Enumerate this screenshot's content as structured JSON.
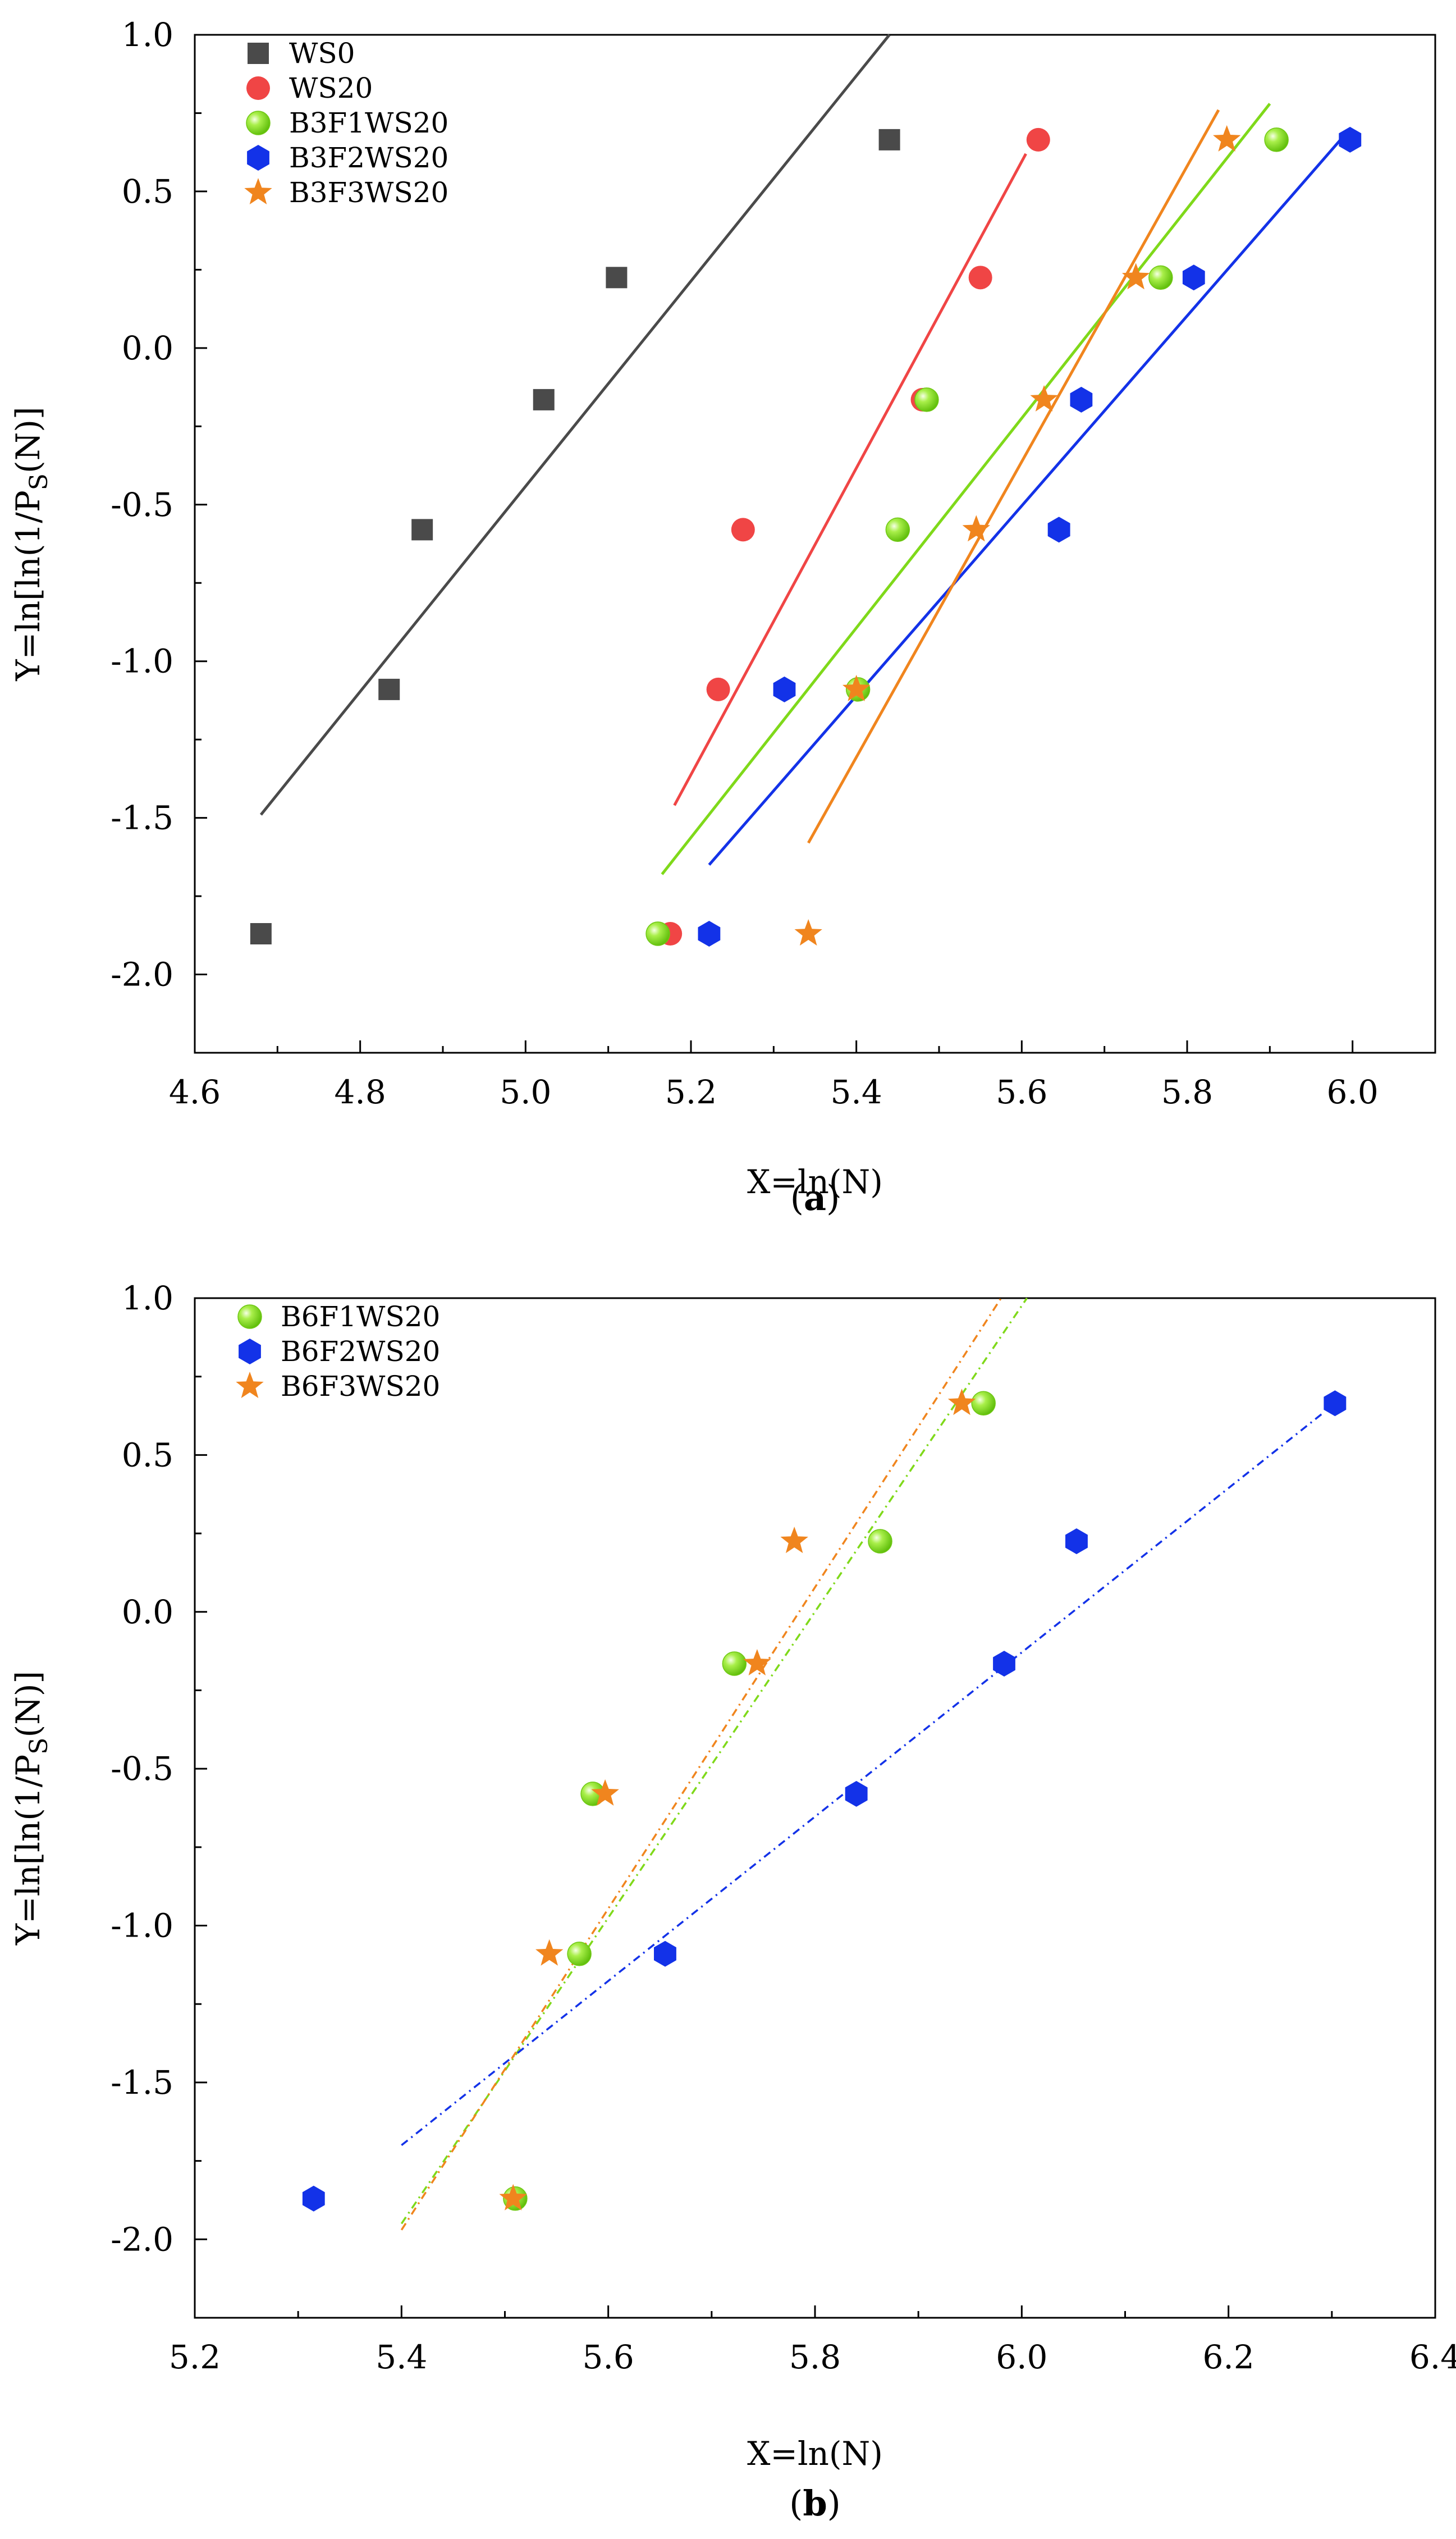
{
  "chart_data": [
    {
      "type": "scatter",
      "panel_label": "a",
      "xlabel": "X=ln(N)",
      "ylabel": "Y=ln[ln(1/P_S(N)]",
      "xlim": [
        4.6,
        6.1
      ],
      "ylim": [
        -2.25,
        1.0
      ],
      "xticks": [
        "4.6",
        "4.8",
        "5.0",
        "5.2",
        "5.4",
        "5.6",
        "5.8",
        "6.0"
      ],
      "xtick_values": [
        4.6,
        4.8,
        5.0,
        5.2,
        5.4,
        5.6,
        5.8,
        6.0
      ],
      "yticks": [
        "-2.0",
        "-1.5",
        "-1.0",
        "-0.5",
        "0.0",
        "0.5",
        "1.0"
      ],
      "ytick_values": [
        -2.0,
        -1.5,
        -1.0,
        -0.5,
        0.0,
        0.5,
        1.0
      ],
      "legend_position": "top-left",
      "series": [
        {
          "name": "WS0",
          "color": "#4a4a4a",
          "marker": "square",
          "x": [
            4.68,
            4.835,
            4.875,
            5.022,
            5.11,
            5.44
          ],
          "y": [
            -1.87,
            -1.09,
            -0.58,
            -0.165,
            0.225,
            0.665
          ],
          "fit": {
            "x": [
              4.68,
              5.44
            ],
            "y": [
              -1.49,
              1.0
            ],
            "style": "solid"
          }
        },
        {
          "name": "WS20",
          "color": "#f04545",
          "marker": "circle",
          "x": [
            5.175,
            5.233,
            5.263,
            5.48,
            5.55,
            5.62
          ],
          "y": [
            -1.87,
            -1.09,
            -0.58,
            -0.165,
            0.225,
            0.665
          ],
          "fit": {
            "x": [
              5.18,
              5.605
            ],
            "y": [
              -1.46,
              0.62
            ],
            "style": "solid"
          }
        },
        {
          "name": "B3F1WS20",
          "color": "#7fd91a",
          "marker": "sphere",
          "x": [
            5.16,
            5.402,
            5.45,
            5.485,
            5.768,
            5.908
          ],
          "y": [
            -1.87,
            -1.09,
            -0.58,
            -0.165,
            0.225,
            0.665
          ],
          "fit": {
            "x": [
              5.165,
              5.9
            ],
            "y": [
              -1.68,
              0.78
            ],
            "style": "solid"
          }
        },
        {
          "name": "B3F2WS20",
          "color": "#1332e8",
          "marker": "hexagon",
          "x": [
            5.222,
            5.313,
            5.645,
            5.672,
            5.808,
            5.997
          ],
          "y": [
            -1.87,
            -1.09,
            -0.58,
            -0.165,
            0.225,
            0.665
          ],
          "fit": {
            "x": [
              5.222,
              5.997
            ],
            "y": [
              -1.65,
              0.7
            ],
            "style": "solid"
          }
        },
        {
          "name": "B3F3WS20",
          "color": "#f0851e",
          "marker": "star",
          "x": [
            5.342,
            5.4,
            5.545,
            5.627,
            5.738,
            5.848
          ],
          "y": [
            -1.87,
            -1.09,
            -0.58,
            -0.165,
            0.225,
            0.665
          ],
          "fit": {
            "x": [
              5.342,
              5.838
            ],
            "y": [
              -1.58,
              0.76
            ],
            "style": "solid"
          }
        }
      ]
    },
    {
      "type": "scatter",
      "panel_label": "b",
      "xlabel": "X=ln(N)",
      "ylabel": "Y=ln[ln(1/P_S(N)]",
      "xlim": [
        5.2,
        6.4
      ],
      "ylim": [
        -2.25,
        1.0
      ],
      "xticks": [
        "5.2",
        "5.4",
        "5.6",
        "5.8",
        "6.0",
        "6.2",
        "6.4"
      ],
      "xtick_values": [
        5.2,
        5.4,
        5.6,
        5.8,
        6.0,
        6.2,
        6.4
      ],
      "yticks": [
        "-2.0",
        "-1.5",
        "-1.0",
        "-0.5",
        "0.0",
        "0.5",
        "1.0"
      ],
      "ytick_values": [
        -2.0,
        -1.5,
        -1.0,
        -0.5,
        0.0,
        0.5,
        1.0
      ],
      "legend_position": "top-left",
      "series": [
        {
          "name": "B6F1WS20",
          "color": "#7fd91a",
          "marker": "sphere",
          "x": [
            5.51,
            5.572,
            5.585,
            5.722,
            5.863,
            5.963
          ],
          "y": [
            -1.87,
            -1.09,
            -0.58,
            -0.165,
            0.225,
            0.665
          ],
          "fit": {
            "x": [
              5.4,
              6.005
            ],
            "y": [
              -1.95,
              1.0
            ],
            "style": "dashdot"
          }
        },
        {
          "name": "B6F2WS20",
          "color": "#1332e8",
          "marker": "hexagon",
          "x": [
            5.315,
            5.655,
            5.84,
            5.983,
            6.053,
            6.303
          ],
          "y": [
            -1.87,
            -1.09,
            -0.58,
            -0.165,
            0.225,
            0.665
          ],
          "fit": {
            "x": [
              5.4,
              6.29
            ],
            "y": [
              -1.7,
              0.63
            ],
            "style": "dashdot"
          }
        },
        {
          "name": "B6F3WS20",
          "color": "#f0851e",
          "marker": "star",
          "x": [
            5.508,
            5.543,
            5.597,
            5.744,
            5.78,
            5.942
          ],
          "y": [
            -1.87,
            -1.09,
            -0.58,
            -0.165,
            0.225,
            0.665
          ],
          "fit": {
            "x": [
              5.4,
              5.98
            ],
            "y": [
              -1.97,
              1.0
            ],
            "style": "dashdot"
          }
        }
      ]
    }
  ]
}
